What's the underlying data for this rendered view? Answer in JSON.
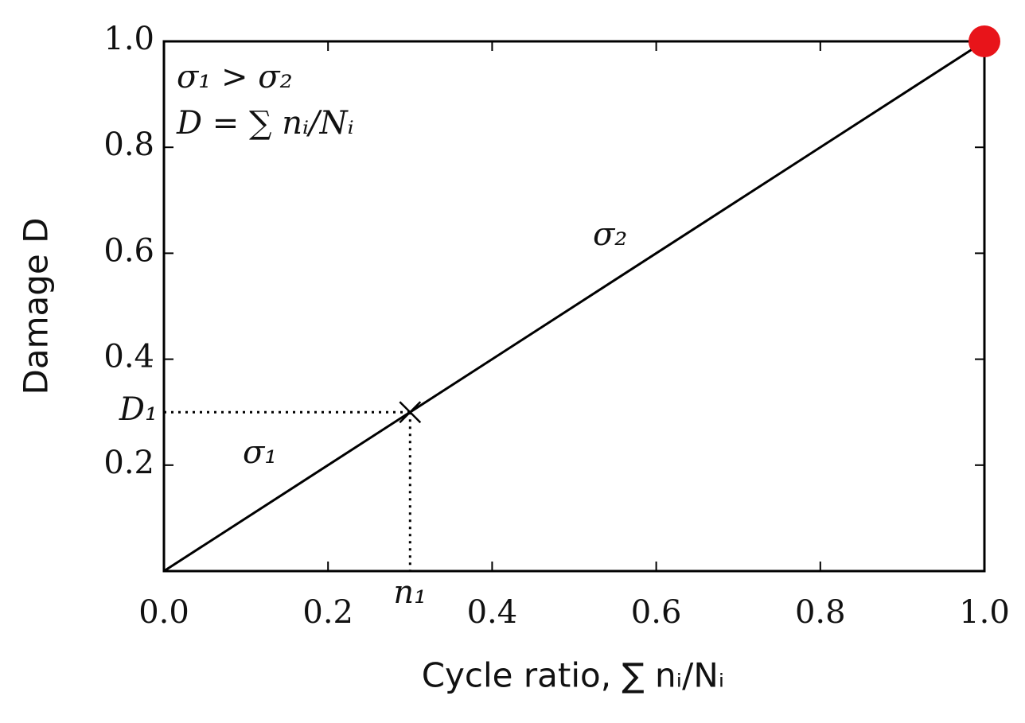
{
  "chart_data": {
    "type": "line",
    "x_label": "Cycle ratio, ∑ nᵢ/Nᵢ",
    "y_label": "Damage D",
    "x": [
      0,
      0.3,
      1
    ],
    "values": [
      0,
      0.3,
      1
    ],
    "color": "#000000",
    "xlim": [
      0,
      1
    ],
    "ylim": [
      0,
      1
    ],
    "xticks": [
      {
        "value": 0,
        "label": "0.0"
      },
      0.2,
      0.4,
      0.6,
      0.8,
      {
        "value": 1,
        "label": "1.0"
      }
    ],
    "yticks": [
      0.2,
      0.4,
      0.6,
      0.8,
      {
        "value": 1,
        "label": "1.0"
      }
    ],
    "grid": false,
    "marker": {
      "x": 0.3,
      "y": 0.3,
      "x_label": "n₁",
      "y_label": "D₁"
    },
    "end_point": {
      "x": 1,
      "y": 1,
      "color": "#e8141a"
    },
    "annotations": [
      "σ₁ > σ₂",
      "D = ∑ nᵢ/Nᵢ",
      "σ₂",
      "σ₁"
    ]
  }
}
